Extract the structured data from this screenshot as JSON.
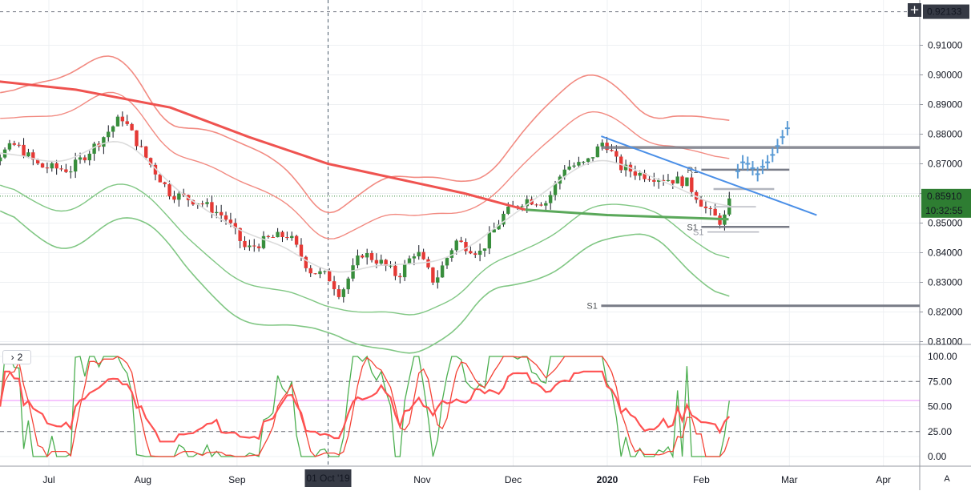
{
  "chart_data": [
    {
      "type": "candlestick",
      "instrument_scale": "price",
      "ylim": [
        0.8075,
        0.9245
      ],
      "y_ticks": [
        "0.91000",
        "0.90000",
        "0.89000",
        "0.88000",
        "0.87000",
        "0.86000",
        "0.85000",
        "0.84000",
        "0.83000",
        "0.82000",
        "0.81000"
      ],
      "x_ticks": [
        "Jul",
        "Aug",
        "Sep",
        "01 Oct '19",
        "Nov",
        "Dec",
        "2020",
        "Feb",
        "Mar",
        "Apr"
      ],
      "x_ticks_dates": [
        "2019-07-01",
        "2019-08-01",
        "2019-09-01",
        "2019-10-01",
        "2019-11-01",
        "2019-12-01",
        "2020-01-01",
        "2020-02-01",
        "2020-03-01",
        "2020-04-01"
      ],
      "price_labels": {
        "crosshair": "0.92133",
        "last": "0.85910",
        "countdown": "10:32:55"
      },
      "levels": [
        {
          "label": "S1",
          "value": 0.8221
        },
        {
          "label": "S1",
          "value": 0.8487
        },
        {
          "label": "S1",
          "value": 0.847
        },
        {
          "label": "R1",
          "value": 0.868
        }
      ],
      "trendline": {
        "from": [
          "2019-12-30",
          0.8793
        ],
        "to": [
          "2020-03-10",
          0.8527
        ]
      },
      "resistance_band": 0.8755,
      "projection_points": [
        0.8675,
        0.8705,
        0.87,
        0.8685,
        0.8665,
        0.869,
        0.8705,
        0.873,
        0.876,
        0.879,
        0.882
      ],
      "ma_long": [
        [
          "2019-06-08",
          0.8985
        ],
        [
          "2019-07-10",
          0.895
        ],
        [
          "2019-08-10",
          0.889
        ],
        [
          "2019-09-05",
          0.879
        ],
        [
          "2019-10-01",
          0.87
        ],
        [
          "2019-10-28",
          0.864
        ],
        [
          "2019-11-15",
          0.86
        ],
        [
          "2019-12-05",
          0.8545
        ],
        [
          "2020-01-01",
          0.8527
        ],
        [
          "2020-02-10",
          0.8513
        ]
      ],
      "bands": {
        "outer_upper": [
          0.8985,
          0.887,
          0.888,
          0.89,
          0.87,
          0.862,
          0.858,
          0.863,
          0.859,
          0.869,
          0.882,
          0.88,
          0.876
        ],
        "outer_lower": [
          0.865,
          0.862,
          0.839,
          0.834,
          0.825,
          0.8195,
          0.823,
          0.823,
          0.838,
          0.828,
          0.833,
          0.838,
          0.845
        ]
      },
      "candles_count": 160
    },
    {
      "type": "oscillator",
      "pane_label": "2",
      "ylim": [
        -4,
        104
      ],
      "y_ticks": [
        "100.00",
        "75.00",
        "50.00",
        "25.00",
        "0.00"
      ],
      "levels": [
        75,
        56,
        25
      ],
      "series": [
        {
          "color": "#4caf50",
          "kind": "stoch_fast"
        },
        {
          "color": "#f44336",
          "kind": "stoch_slow"
        },
        {
          "color": "#ff5252",
          "kind": "rsi_like"
        }
      ]
    }
  ],
  "colors": {
    "up": "#388e3c",
    "down": "#e53935",
    "band_red": "#f28b82",
    "band_green": "#81c784",
    "ma_red": "#ef5350",
    "ma_green": "#5aa85a",
    "trend": "#4a8fe7",
    "level": "#787b86",
    "projection": "#5b9bd5",
    "last_price_bg": "#2e7d32"
  },
  "ui": {
    "pane_number": "2",
    "auto_label": "A",
    "plus_icon": "crosshair-plus-icon"
  }
}
